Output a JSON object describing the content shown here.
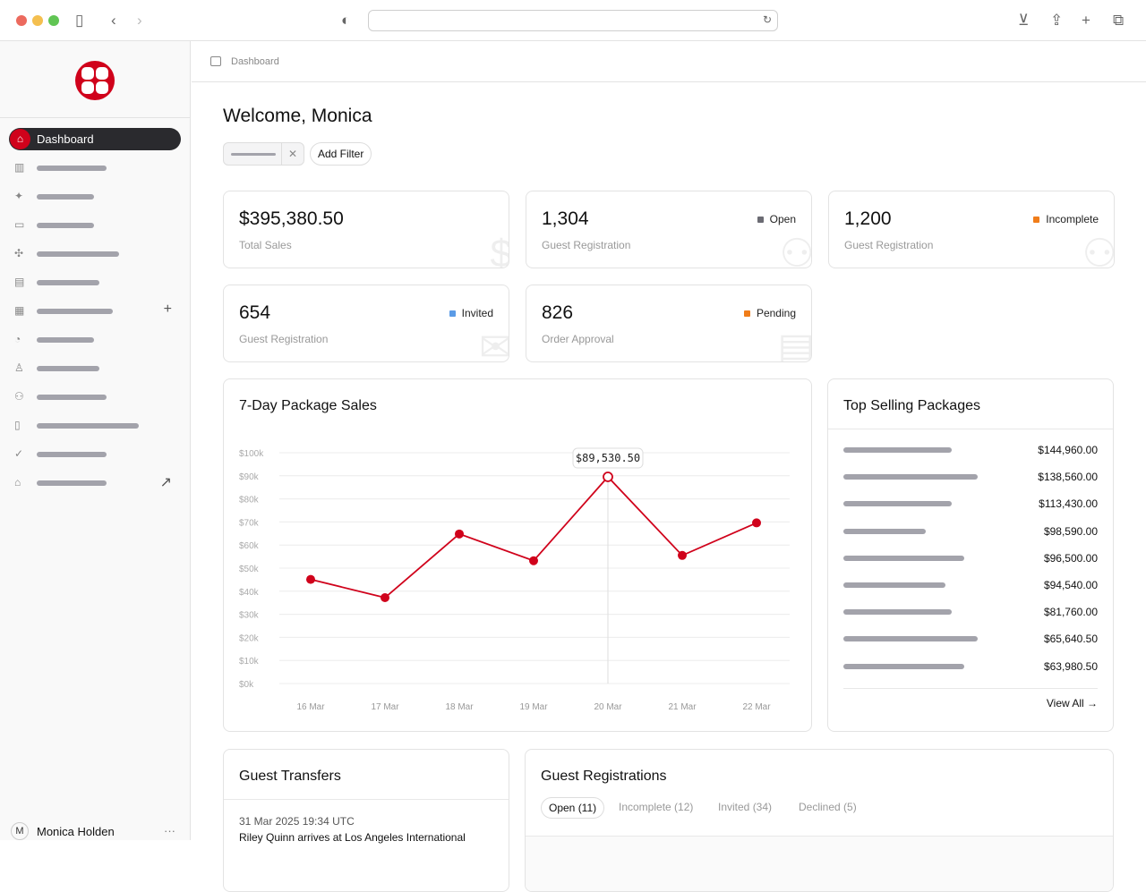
{
  "browser": {
    "icons": [
      "sidebar-icon",
      "back-icon",
      "forward-icon",
      "shield-icon",
      "reload-icon",
      "download-icon",
      "share-icon",
      "new-tab-icon",
      "tabs-icon"
    ],
    "url": ""
  },
  "sidebar": {
    "active": {
      "label": "Dashboard",
      "icon": "home-icon"
    },
    "items": [
      {
        "icon": "building-icon"
      },
      {
        "icon": "sparkle-icon"
      },
      {
        "icon": "archive-icon"
      },
      {
        "icon": "puzzle-icon"
      },
      {
        "icon": "ticket-icon"
      },
      {
        "icon": "receipt-icon",
        "action": "+"
      },
      {
        "icon": "pie-chart-icon"
      },
      {
        "icon": "user-icon"
      },
      {
        "icon": "users-icon"
      },
      {
        "icon": "document-icon"
      },
      {
        "icon": "check-circle-icon"
      },
      {
        "icon": "store-icon",
        "action": "↗"
      }
    ],
    "user": {
      "initial": "M",
      "name": "Monica Holden",
      "more": "···"
    }
  },
  "breadcrumb": "Dashboard",
  "title": "Welcome, Monica",
  "filters": {
    "clear": "✕",
    "add": "Add Filter"
  },
  "stats": [
    {
      "value": "$395,380.50",
      "label": "Total Sales",
      "badge": "",
      "icon": "$"
    },
    {
      "value": "1,304",
      "label": "Guest Registration",
      "badge": "Open",
      "color": "#6b6b73"
    },
    {
      "value": "1,200",
      "label": "Guest Registration",
      "badge": "Incomplete",
      "color": "#f07d1a"
    },
    {
      "value": "654",
      "label": "Guest Registration",
      "badge": "Invited",
      "color": "#5b9be6"
    },
    {
      "value": "826",
      "label": "Order Approval",
      "badge": "Pending",
      "color": "#f07d1a"
    }
  ],
  "chart_data": {
    "type": "line",
    "title": "7-Day Package Sales",
    "categories": [
      "16 Mar",
      "17 Mar",
      "18 Mar",
      "19 Mar",
      "20 Mar",
      "21 Mar",
      "22 Mar"
    ],
    "values": [
      45100,
      37200,
      64800,
      53200,
      89530.5,
      55500,
      69600
    ],
    "ylim": [
      0,
      100000
    ],
    "yticks": [
      "$0k",
      "$10k",
      "$20k",
      "$30k",
      "$40k",
      "$50k",
      "$60k",
      "$70k",
      "$80k",
      "$90k",
      "$100k"
    ],
    "tooltip": "$89,530.50",
    "highlight_index": 4,
    "color": "#d0021b",
    "grid": true
  },
  "top_selling": {
    "title": "Top Selling Packages",
    "values": [
      "$144,960.00",
      "$138,560.00",
      "$113,430.00",
      "$98,590.00",
      "$96,500.00",
      "$94,540.00",
      "$81,760.00",
      "$65,640.50",
      "$63,980.50"
    ],
    "view_all": "View All →"
  },
  "transfers": {
    "title": "Guest Transfers",
    "time": "31 Mar 2025 19:34 UTC",
    "text": "Riley Quinn arrives at Los Angeles International"
  },
  "registrations": {
    "title": "Guest Registrations",
    "tabs": [
      "Open (11)",
      "Incomplete (12)",
      "Invited (34)",
      "Declined (5)"
    ]
  }
}
